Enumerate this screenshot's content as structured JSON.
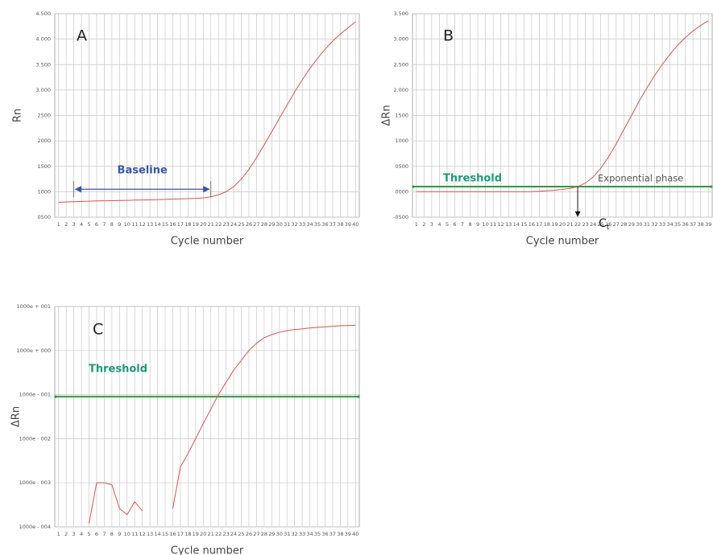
{
  "chart_data": [
    {
      "type": "line",
      "panel_label": "A",
      "x_label": "Cycle number",
      "y_label": "Rn",
      "categories": [
        1,
        2,
        3,
        4,
        5,
        6,
        7,
        8,
        9,
        10,
        11,
        12,
        13,
        14,
        15,
        16,
        17,
        18,
        19,
        20,
        21,
        22,
        23,
        24,
        25,
        26,
        27,
        28,
        29,
        30,
        31,
        32,
        33,
        34,
        35,
        36,
        37,
        38,
        39,
        40
      ],
      "values": [
        790,
        800,
        805,
        810,
        815,
        820,
        822,
        825,
        828,
        830,
        835,
        838,
        840,
        845,
        850,
        855,
        860,
        865,
        870,
        880,
        900,
        940,
        1000,
        1100,
        1250,
        1440,
        1670,
        1920,
        2180,
        2440,
        2700,
        2960,
        3200,
        3420,
        3620,
        3800,
        3960,
        4100,
        4220,
        4340
      ],
      "color": "#d5564d",
      "ylim": [
        500,
        4500
      ],
      "yticks": [
        {
          "value": 500,
          "label": "0500"
        },
        1000,
        1500,
        2000,
        2500,
        {
          "value": 3000,
          "label": "3.000"
        },
        {
          "value": 3500,
          "label": "3.500"
        },
        {
          "value": 4000,
          "label": "4.000"
        },
        {
          "value": 4500,
          "label": "4.500"
        }
      ],
      "grid": true,
      "baseline": {
        "label": "Baseline",
        "from": 3,
        "to": 21,
        "value": 1050,
        "color": "#3a55a4"
      }
    },
    {
      "type": "line",
      "panel_label": "B",
      "x_label": "Cycle number",
      "y_label": "ΔRn",
      "categories": [
        1,
        2,
        3,
        4,
        5,
        6,
        7,
        8,
        9,
        10,
        11,
        12,
        13,
        14,
        15,
        16,
        17,
        18,
        19,
        20,
        21,
        22,
        23,
        24,
        25,
        26,
        27,
        28,
        29,
        30,
        31,
        32,
        33,
        34,
        35,
        36,
        37,
        38,
        39
      ],
      "values": [
        0,
        0,
        0,
        0,
        0,
        0,
        0,
        0,
        0,
        0,
        0,
        0,
        0,
        0,
        0,
        2,
        10,
        20,
        30,
        45,
        65,
        100,
        170,
        290,
        460,
        680,
        940,
        1220,
        1500,
        1780,
        2040,
        2280,
        2500,
        2700,
        2880,
        3030,
        3160,
        3270,
        3360
      ],
      "color": "#d5564d",
      "ylim": [
        -500,
        3500
      ],
      "yticks": [
        {
          "value": -500,
          "label": "-0500"
        },
        {
          "value": 0,
          "label": "0000"
        },
        {
          "value": 500,
          "label": "0500"
        },
        1000,
        1500,
        {
          "value": 2000,
          "label": "2.000"
        },
        {
          "value": 2500,
          "label": "2.500"
        },
        {
          "value": 3000,
          "label": "3.000"
        },
        {
          "value": 3500,
          "label": "3.500"
        }
      ],
      "grid": true,
      "threshold": {
        "label": "Threshold",
        "value": 100,
        "color": "#2e9a3e",
        "text_color": "#1d9a78"
      },
      "phase_label": "Exponential phase",
      "ct": {
        "cycle": 22,
        "label": "C",
        "subscript": "t"
      }
    },
    {
      "type": "line",
      "panel_label": "C",
      "x_label": "Cycle number",
      "y_label": "ΔRn",
      "log_scale": true,
      "categories": [
        1,
        2,
        3,
        4,
        5,
        6,
        7,
        8,
        9,
        10,
        11,
        12,
        13,
        14,
        15,
        16,
        17,
        18,
        19,
        20,
        21,
        22,
        23,
        24,
        25,
        26,
        27,
        28,
        29,
        30,
        31,
        32,
        33,
        34,
        35,
        36,
        37,
        38,
        39,
        40
      ],
      "values": [
        null,
        null,
        null,
        null,
        0.00012,
        0.001,
        0.001,
        0.0009,
        0.00026,
        0.00019,
        0.00037,
        0.00023,
        null,
        null,
        null,
        0.00026,
        0.0023,
        0.0046,
        0.01,
        0.022,
        0.047,
        0.1,
        0.19,
        0.36,
        0.6,
        1.0,
        1.46,
        1.96,
        2.3,
        2.6,
        2.8,
        3.0,
        3.1,
        3.25,
        3.35,
        3.45,
        3.55,
        3.65,
        3.7,
        3.75
      ],
      "color": "#d5564d",
      "ylim": [
        0.0001,
        10
      ],
      "yticks": [
        {
          "value": 0.0001,
          "label": "1000e - 004"
        },
        {
          "value": 0.001,
          "label": "1000e - 003"
        },
        {
          "value": 0.01,
          "label": "1000e - 002"
        },
        {
          "value": 0.1,
          "label": "1000e - 001"
        },
        {
          "value": 1,
          "label": "1000e + 000"
        },
        {
          "value": 10,
          "label": "1000e + 001"
        }
      ],
      "grid": true,
      "threshold": {
        "label": "Threshold",
        "value": 0.09,
        "color": "#2e9a3e",
        "text_color": "#1d9a78"
      }
    }
  ]
}
